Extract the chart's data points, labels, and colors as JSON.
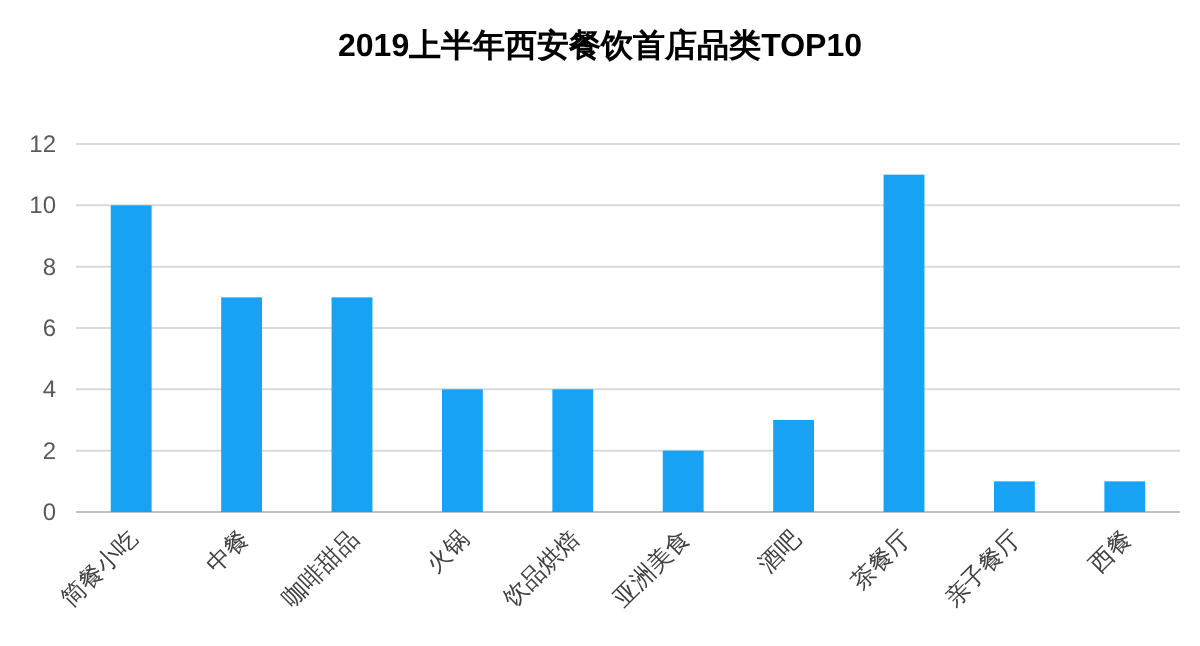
{
  "chart_data": {
    "type": "bar",
    "title": "2019上半年西安餐饮首店品类TOP10",
    "categories": [
      "简餐小吃",
      "中餐",
      "咖啡甜品",
      "火锅",
      "饮品烘焙",
      "亚洲美食",
      "酒吧",
      "茶餐厅",
      "亲子餐厅",
      "西餐"
    ],
    "values": [
      10,
      7,
      7,
      4,
      4,
      2,
      3,
      11,
      1,
      1
    ],
    "color": "#18a2f4",
    "ylim": [
      0,
      12
    ],
    "yticks": [
      0,
      2,
      4,
      6,
      8,
      10,
      12
    ],
    "grid": "y"
  }
}
